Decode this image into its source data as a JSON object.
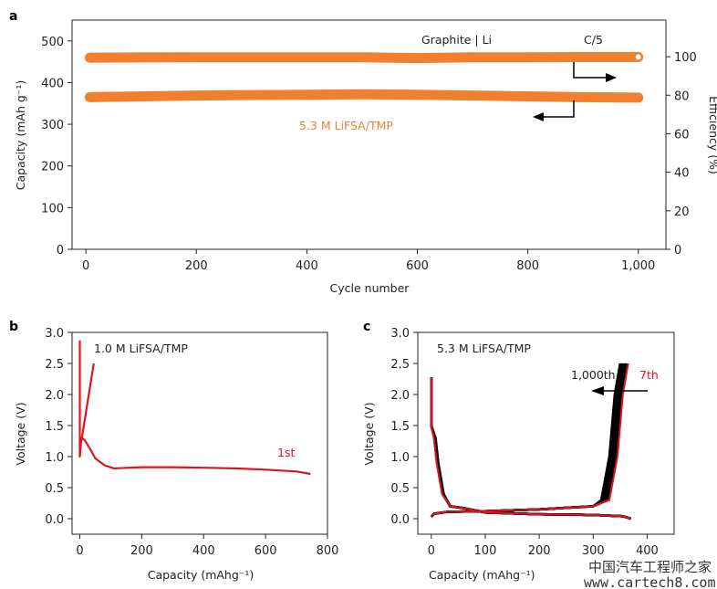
{
  "chart_data": [
    {
      "panel": "a",
      "type": "scatter",
      "xlabel": "Cycle number",
      "ylabel": "Capacity (mAh g⁻¹)",
      "y2label": "Efficiency (%)",
      "xlim": [
        -25,
        1050
      ],
      "ylim": [
        0,
        550
      ],
      "y2lim": [
        0,
        119
      ],
      "xticks": [
        "0",
        "200",
        "400",
        "600",
        "800",
        "1,000"
      ],
      "xtick_values": [
        0,
        200,
        400,
        600,
        800,
        1000
      ],
      "yticks": [
        "0",
        "100",
        "200",
        "300",
        "400",
        "500"
      ],
      "ytick_values": [
        0,
        100,
        200,
        300,
        400,
        500
      ],
      "y2ticks": [
        "0",
        "20",
        "40",
        "60",
        "80",
        "100"
      ],
      "y2tick_values": [
        0,
        20,
        40,
        60,
        80,
        100
      ],
      "color": "#f08030",
      "series": [
        {
          "axis": "left",
          "x": [
            7,
            100,
            200,
            300,
            400,
            500,
            600,
            700,
            800,
            900,
            1000
          ],
          "values": [
            365,
            367,
            369,
            370,
            371,
            372,
            371,
            369,
            367,
            365,
            364
          ]
        },
        {
          "axis": "right",
          "x": [
            7,
            100,
            200,
            300,
            400,
            500,
            600,
            700,
            800,
            900,
            1000
          ],
          "values": [
            99.5,
            99.6,
            99.7,
            99.7,
            99.7,
            99.7,
            99.3,
            99.7,
            99.7,
            99.8,
            99.8
          ]
        }
      ],
      "annotations": {
        "cell": "Graphite | Li",
        "rate": "C/5",
        "electrolyte": "5.3 M LiFSA/TMP"
      },
      "grid": false
    },
    {
      "panel": "b",
      "type": "line",
      "xlabel": "Capacity (mAhg⁻¹)",
      "ylabel": "Voltage (V)",
      "xlim": [
        -25,
        800
      ],
      "ylim": [
        -0.25,
        3.0
      ],
      "xticks": [
        "0",
        "200",
        "400",
        "600",
        "800"
      ],
      "xtick_values": [
        0,
        200,
        400,
        600,
        800
      ],
      "yticks": [
        "0.0",
        "0.5",
        "1.0",
        "1.5",
        "2.0",
        "2.5",
        "3.0"
      ],
      "ytick_values": [
        0,
        0.5,
        1.0,
        1.5,
        2.0,
        2.5,
        3.0
      ],
      "color": "#e0141e",
      "series": [
        {
          "x": [
            0,
            0,
            5,
            15,
            30,
            50,
            80,
            110,
            200,
            300,
            400,
            500,
            600,
            700,
            745
          ],
          "values": [
            2.87,
            1.0,
            1.3,
            1.27,
            1.15,
            0.97,
            0.86,
            0.81,
            0.83,
            0.83,
            0.82,
            0.81,
            0.79,
            0.76,
            0.72
          ]
        },
        {
          "x": [
            5,
            45
          ],
          "values": [
            1.25,
            2.5
          ]
        }
      ],
      "annotations": {
        "electrolyte": "1.0 M LiFSA/TMP",
        "cycle": "1st"
      },
      "grid": false
    },
    {
      "panel": "c",
      "type": "line",
      "xlabel": "Capacity (mAhg⁻¹)",
      "ylabel": "Voltage (V)",
      "xlim": [
        -25,
        450
      ],
      "ylim": [
        -0.25,
        3.0
      ],
      "xticks": [
        "0",
        "100",
        "200",
        "300",
        "400"
      ],
      "xtick_values": [
        0,
        100,
        200,
        300,
        400
      ],
      "yticks": [
        "0.0",
        "0.5",
        "1.0",
        "1.5",
        "2.0",
        "2.5",
        "3.0"
      ],
      "ytick_values": [
        0,
        0.5,
        1.0,
        1.5,
        2.0,
        2.5,
        3.0
      ],
      "colors": {
        "7th": "#e0141e",
        "later": "#000000"
      },
      "discharge": {
        "x": [
          0,
          0,
          5,
          10,
          20,
          35,
          60,
          100,
          200,
          300,
          355,
          370
        ],
        "values": [
          2.28,
          1.5,
          1.3,
          0.9,
          0.4,
          0.2,
          0.17,
          0.1,
          0.07,
          0.06,
          0.04,
          0.0
        ]
      },
      "charge": {
        "x": [
          0,
          5,
          30,
          100,
          200,
          300,
          330,
          345,
          355,
          365
        ],
        "values": [
          0.03,
          0.08,
          0.11,
          0.12,
          0.15,
          0.2,
          0.3,
          1.0,
          2.0,
          2.5
        ]
      },
      "capacity_shift_7th_to_1000th": -15,
      "annotations": {
        "electrolyte": "5.3 M LiFSA/TMP",
        "last": "1,000th",
        "first": "7th"
      },
      "grid": false
    }
  ],
  "panel_labels": [
    "a",
    "b",
    "c"
  ],
  "watermark": {
    "cn": "中国汽车工程师之家",
    "url": "www.cartech8.com"
  }
}
